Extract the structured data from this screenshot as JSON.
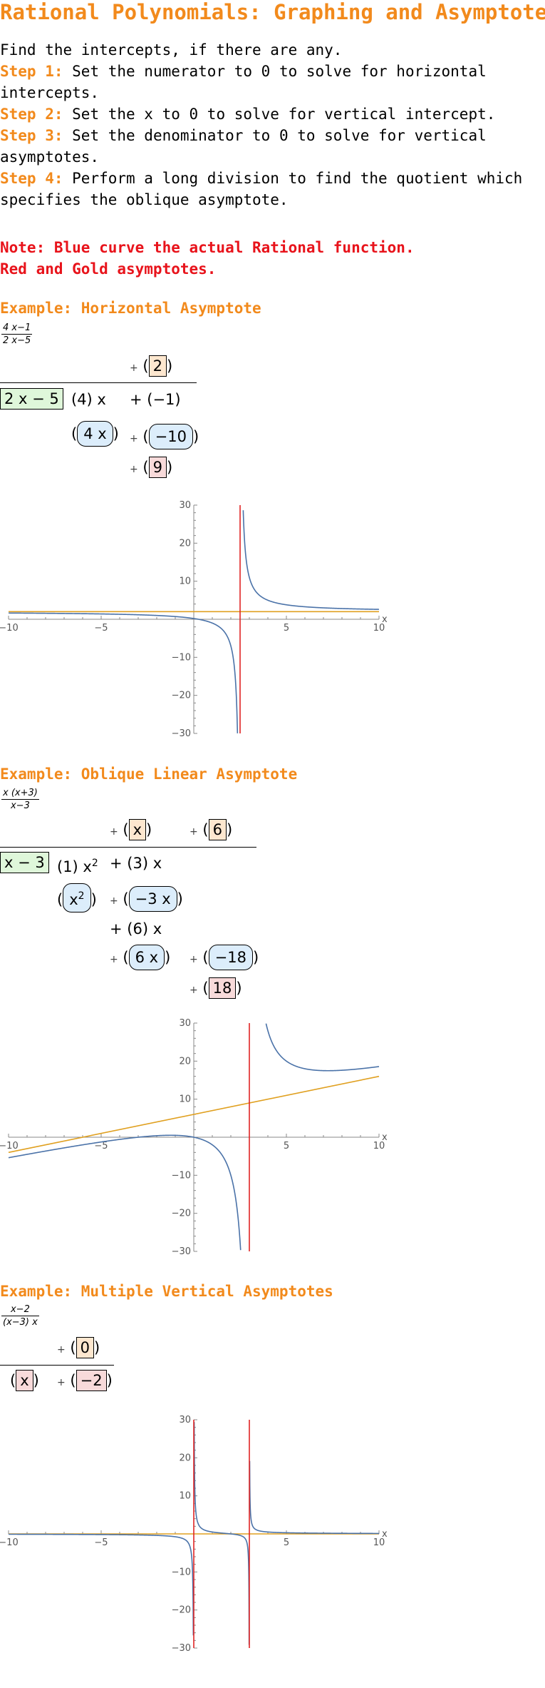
{
  "title": "Rational Polynomials: Graphing and Asymptotes",
  "intro": "Find the intercepts, if there are any.",
  "steps": [
    {
      "label": "Step 1:",
      "text": " Set the numerator to 0 to solve for horizontal intercepts."
    },
    {
      "label": "Step 2:",
      "text": " Set the x to 0 to solve for vertical intercept."
    },
    {
      "label": "Step 3:",
      "text": " Set the denominator to 0 to solve for vertical asymptotes."
    },
    {
      "label": "Step 4:",
      "text": " Perform a long division to find the quotient which specifies the oblique asymptote."
    }
  ],
  "note": [
    "Note: Blue curve the actual Rational function.",
    "Red and Gold asymptotes."
  ],
  "examples": [
    {
      "title": "Example: Horizontal Asymptote",
      "numerator": "4 x−1",
      "denominator": "2 x−5",
      "quotient": [
        "2"
      ],
      "divisor": "2 x − 5",
      "dividend": [
        "(4) x",
        "+ (−1)"
      ],
      "subtract": [
        "4 x",
        "−10"
      ],
      "remainder": "9",
      "plus": "+"
    },
    {
      "title": "Example: Oblique Linear Asymptote",
      "numerator": "x (x+3)",
      "denominator": "x−3",
      "quotient": [
        "x",
        "6"
      ],
      "divisor": "x − 3",
      "dividend": [
        "(1) x",
        "2",
        "+ (3) x"
      ],
      "subtract1": [
        "x",
        "2",
        "−3 x"
      ],
      "mid": "+ (6) x",
      "subtract2": [
        "6 x",
        "−18"
      ],
      "remainder": "18",
      "plus": "+"
    },
    {
      "title": "Example: Multiple Vertical Asymptotes",
      "numerator": "x−2",
      "denominator": "(x−3) x",
      "quotient": [
        "0"
      ],
      "divisor": "x",
      "remainder": "−2",
      "plus": "+"
    }
  ],
  "colors": {
    "curve": "#4a72a8",
    "vertical": "#e02424",
    "oblique": "#e0a020",
    "label": "#f28a1c"
  },
  "chart_data": [
    {
      "type": "line",
      "function": "(4x-1)/(2x-5)",
      "xlim": [
        -10,
        10
      ],
      "ylim": [
        -30,
        30
      ],
      "xticks": [
        -10,
        -5,
        5,
        10
      ],
      "yticks": [
        -30,
        -20,
        -10,
        10,
        20,
        30
      ],
      "tick_labels_x": [
        "−10",
        "−5",
        "5",
        "10"
      ],
      "tick_labels_y": [
        "−30",
        "−20",
        "−10",
        "10",
        "20",
        "30"
      ],
      "xlabel": "x",
      "vertical_asymptotes": [
        2.5
      ],
      "asymptote_line": {
        "slope": 0,
        "intercept": 2
      }
    },
    {
      "type": "line",
      "function": "x(x+3)/(x-3)",
      "xlim": [
        -10,
        10
      ],
      "ylim": [
        -30,
        30
      ],
      "xticks": [
        -10,
        -5,
        5,
        10
      ],
      "yticks": [
        -30,
        -20,
        -10,
        10,
        20,
        30
      ],
      "tick_labels_x": [
        "−10",
        "−5",
        "5",
        "10"
      ],
      "tick_labels_y": [
        "−30",
        "−20",
        "−10",
        "10",
        "20",
        "30"
      ],
      "xlabel": "x",
      "vertical_asymptotes": [
        3
      ],
      "asymptote_line": {
        "slope": 1,
        "intercept": 6
      }
    },
    {
      "type": "line",
      "function": "(x-2)/((x-3)x)",
      "xlim": [
        -10,
        10
      ],
      "ylim": [
        -30,
        30
      ],
      "xticks": [
        -10,
        -5,
        5,
        10
      ],
      "yticks": [
        -30,
        -20,
        -10,
        10,
        20,
        30
      ],
      "tick_labels_x": [
        "−10",
        "−5",
        "5",
        "10"
      ],
      "tick_labels_y": [
        "−30",
        "−20",
        "−10",
        "10",
        "20",
        "30"
      ],
      "xlabel": "x",
      "vertical_asymptotes": [
        0,
        3
      ],
      "asymptote_line": {
        "slope": 0,
        "intercept": 0
      }
    }
  ]
}
